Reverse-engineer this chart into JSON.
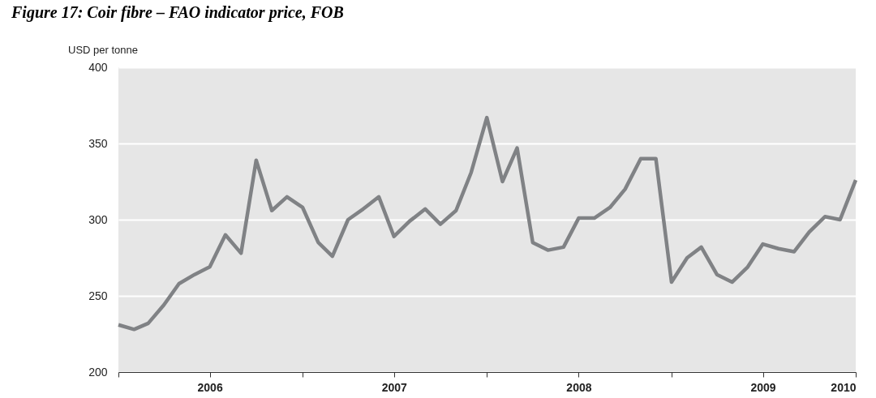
{
  "chart_data": {
    "type": "line",
    "title": "Figure 17: Coir fibre – FAO indicator price, FOB",
    "ylabel": "USD per tonne",
    "x": [
      "2006-01",
      "2006-02",
      "2006-03",
      "2006-04",
      "2006-05",
      "2006-06",
      "2006-07",
      "2006-08",
      "2006-09",
      "2006-10",
      "2006-11",
      "2006-12",
      "2007-01",
      "2007-02",
      "2007-03",
      "2007-04",
      "2007-05",
      "2007-06",
      "2007-07",
      "2007-08",
      "2007-09",
      "2007-10",
      "2007-11",
      "2007-12",
      "2008-01",
      "2008-02",
      "2008-03",
      "2008-04",
      "2008-05",
      "2008-06",
      "2008-07",
      "2008-08",
      "2008-09",
      "2008-10",
      "2008-11",
      "2008-12",
      "2009-01",
      "2009-02",
      "2009-03",
      "2009-04",
      "2009-05",
      "2009-06",
      "2009-07",
      "2009-08",
      "2009-09",
      "2009-10",
      "2009-11",
      "2009-12",
      "2010-01"
    ],
    "series": [
      {
        "color": "#808285",
        "values": [
          231,
          228,
          232,
          244,
          258,
          264,
          269,
          290,
          278,
          339,
          306,
          315,
          308,
          285,
          276,
          300,
          307,
          315,
          289,
          299,
          307,
          297,
          306,
          331,
          367,
          325,
          347,
          285,
          280,
          282,
          301,
          301,
          308,
          320,
          340,
          340,
          259,
          275,
          282,
          264,
          259,
          269,
          284,
          281,
          279,
          292,
          302,
          300,
          326
        ]
      }
    ],
    "xlim": [
      "2006-01",
      "2010-01"
    ],
    "xticks": [
      {
        "value": "2006-01",
        "label": null
      },
      {
        "value": "2006-07",
        "label": "2006"
      },
      {
        "value": "2007-01",
        "label": null
      },
      {
        "value": "2007-07",
        "label": "2007"
      },
      {
        "value": "2008-01",
        "label": null
      },
      {
        "value": "2008-07",
        "label": "2008"
      },
      {
        "value": "2009-01",
        "label": null
      },
      {
        "value": "2009-07",
        "label": "2009"
      },
      {
        "value": "2010-01",
        "label": "2010"
      }
    ],
    "ylim": [
      200,
      400
    ],
    "yticks": [
      200,
      250,
      300,
      350,
      400
    ],
    "grid": "y",
    "marker": "none",
    "line_style": "solid"
  }
}
